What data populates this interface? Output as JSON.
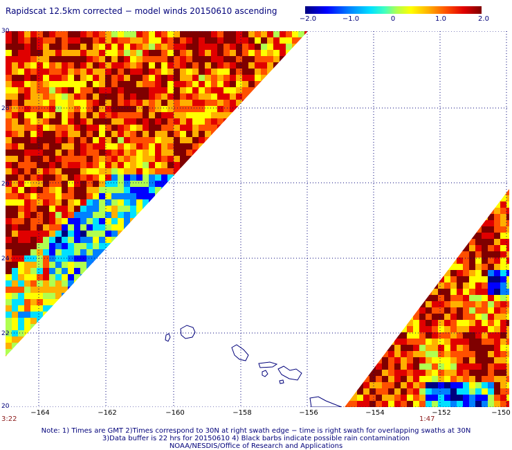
{
  "title": "Rapidscat 12.5km corrected − model winds 20150610 ascending",
  "colorbar": {
    "ticks": [
      "−2.0",
      "−1.0",
      "0",
      "1.0",
      "2.0"
    ],
    "range": [
      -2.0,
      2.0
    ],
    "colors": [
      "#00007f",
      "#0000ff",
      "#0080ff",
      "#00e0ff",
      "#b0ff50",
      "#ffff00",
      "#ffb000",
      "#ff5000",
      "#e00000",
      "#7f0000"
    ]
  },
  "map": {
    "lat_labels": [
      "30",
      "28",
      "26",
      "24",
      "22",
      "20"
    ],
    "lon_labels": [
      "−164",
      "−162",
      "−160",
      "−158",
      "−156",
      "−154",
      "−152",
      "−150"
    ],
    "lat_range": [
      20,
      30
    ],
    "lon_range": [
      -165,
      -150
    ],
    "swath_times": [
      "3:22",
      "1:47"
    ],
    "coastline_color": "#00007a",
    "grid_color": "#00007a"
  },
  "notes": [
    "Note: 1) Times are GMT 2)Times correspond to 30N at right swath edge − time is right swath for overlapping swaths at 30N",
    "3)Data buffer is 22 hrs for 20150610 4) Black barbs indicate possible rain contamination",
    "NOAA/NESDIS/Office of Research and Applications"
  ]
}
